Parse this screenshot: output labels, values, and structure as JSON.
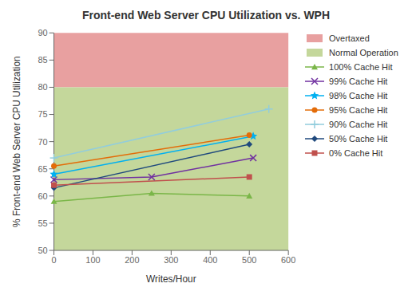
{
  "chart_data": {
    "type": "line",
    "title": "Front-end Web Server CPU Utilization vs. WPH",
    "xlabel": "Writes/Hour",
    "ylabel": "% Front-end Web Server CPU Utilization",
    "xlim": [
      0,
      600
    ],
    "ylim": [
      50,
      90
    ],
    "xticks": [
      0,
      100,
      200,
      300,
      400,
      500,
      600
    ],
    "yticks": [
      50,
      55,
      60,
      65,
      70,
      75,
      80,
      85,
      90
    ],
    "grid": false,
    "legend": "right",
    "bands": [
      {
        "name": "Overtaxed",
        "from": 80,
        "to": 90,
        "color": "#e8a0a0"
      },
      {
        "name": "Normal Operation",
        "from": 50,
        "to": 80,
        "color": "#c4d79b"
      }
    ],
    "series": [
      {
        "name": "100% Cache Hit",
        "color": "#7ab648",
        "marker": "triangle",
        "x": [
          0,
          250,
          500
        ],
        "values": [
          59.0,
          60.5,
          60.0
        ]
      },
      {
        "name": "99% Cache Hit",
        "color": "#7030a0",
        "marker": "x",
        "x": [
          0,
          250,
          510
        ],
        "values": [
          63.0,
          63.5,
          67.0
        ]
      },
      {
        "name": "98% Cache Hit",
        "color": "#00b0f0",
        "marker": "star",
        "x": [
          0,
          510
        ],
        "values": [
          64.0,
          71.0
        ]
      },
      {
        "name": "95% Cache Hit",
        "color": "#e36c09",
        "marker": "circle",
        "x": [
          0,
          500
        ],
        "values": [
          65.5,
          71.2
        ]
      },
      {
        "name": "90% Cache Hit",
        "color": "#92cddc",
        "marker": "plus",
        "x": [
          0,
          550
        ],
        "values": [
          67.0,
          76.0
        ]
      },
      {
        "name": "50% Cache Hit",
        "color": "#1f497d",
        "marker": "diamond",
        "x": [
          0,
          500
        ],
        "values": [
          61.5,
          69.5
        ]
      },
      {
        "name": "0% Cache Hit",
        "color": "#c0504d",
        "marker": "square",
        "x": [
          0,
          500
        ],
        "values": [
          62.0,
          63.5
        ]
      }
    ]
  }
}
